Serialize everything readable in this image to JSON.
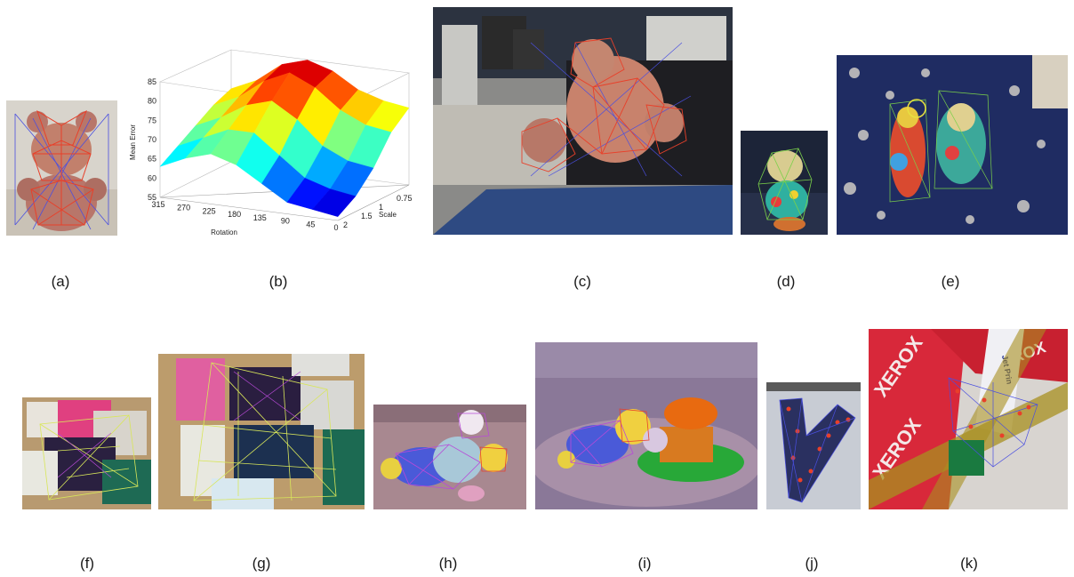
{
  "figure": {
    "captions": {
      "a": "(a)",
      "b": "(b)",
      "c": "(c)",
      "d": "(d)",
      "e": "(e)",
      "f": "(f)",
      "g": "(g)",
      "h": "(h)",
      "i": "(i)",
      "j": "(j)",
      "k": "(k)"
    },
    "panel_k_text": {
      "brand_1": "XEROX",
      "brand_2": "XEROX",
      "brand_3": "XEROX",
      "label": "Jet Prin"
    }
  },
  "chart_data": {
    "type": "surface",
    "title": "",
    "zlabel": "Mean Error",
    "xlabel": "Rotation",
    "ylabel": "Scale",
    "zlim": [
      55,
      85
    ],
    "z_ticks": [
      55,
      60,
      65,
      70,
      75,
      80,
      85
    ],
    "rotation_ticks": [
      315,
      270,
      225,
      180,
      135,
      90,
      45,
      0
    ],
    "scale_ticks": [
      2,
      1.5,
      1,
      0.75,
      0.5
    ],
    "colormap": "jet",
    "grid": true,
    "rotation": [
      315,
      270,
      225,
      180,
      135,
      90,
      45,
      0
    ],
    "scale": [
      2,
      1.5,
      1,
      0.75,
      0.5
    ],
    "z": [
      [
        63,
        66,
        69,
        72,
        74
      ],
      [
        66,
        69,
        72,
        75,
        77
      ],
      [
        68,
        72,
        76,
        80,
        82
      ],
      [
        66,
        72,
        78,
        83,
        84
      ],
      [
        62,
        67,
        74,
        80,
        82
      ],
      [
        58,
        62,
        68,
        75,
        78
      ],
      [
        57,
        60,
        65,
        72,
        76
      ],
      [
        56,
        59,
        64,
        71,
        75
      ]
    ]
  },
  "colors": {
    "mesh_red": "#e8402a",
    "mesh_blue": "#4a4fe0",
    "mesh_yellow": "#d8e65a",
    "mesh_purple": "#b84ad8"
  }
}
